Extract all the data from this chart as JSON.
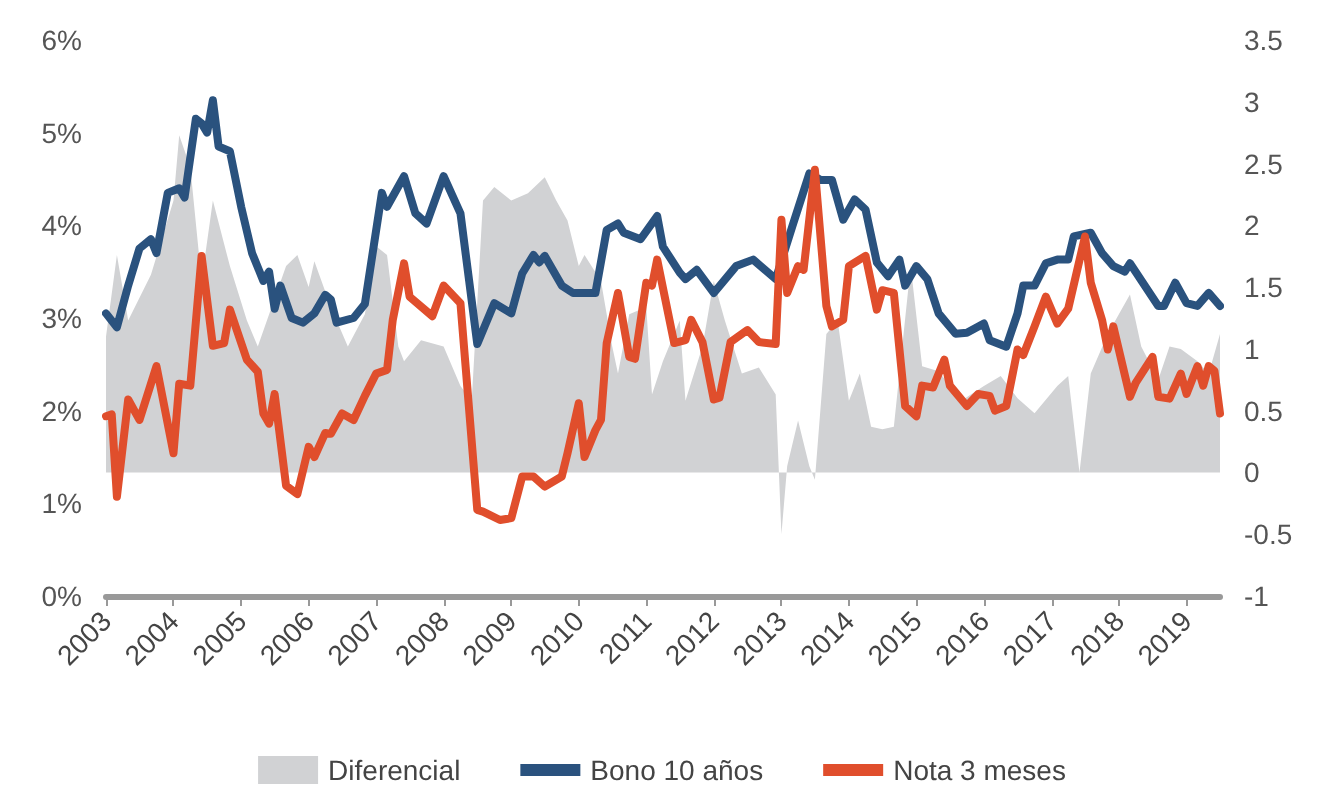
{
  "chart_data": {
    "type": "line",
    "legend": "bottom",
    "grid": false,
    "marker": "none",
    "line_style": "solid",
    "xlim": [
      "2003-01",
      "2019-07"
    ],
    "xticks": [
      "2003",
      "2004",
      "2005",
      "2006",
      "2007",
      "2008",
      "2009",
      "2010",
      "2011",
      "2012",
      "2013",
      "2014",
      "2015",
      "2016",
      "2017",
      "2018",
      "2019"
    ],
    "ylim": [
      0,
      6
    ],
    "yticks": [
      {
        "value": 0,
        "label": "0%"
      },
      {
        "value": 1,
        "label": "1%"
      },
      {
        "value": 2,
        "label": "2%"
      },
      {
        "value": 3,
        "label": "3%"
      },
      {
        "value": 4,
        "label": "4%"
      },
      {
        "value": 5,
        "label": "5%"
      },
      {
        "value": 6,
        "label": "6%"
      }
    ],
    "y2lim": [
      -1,
      3.5
    ],
    "y2ticks": [
      -1,
      -0.5,
      0,
      0.5,
      1,
      1.5,
      2,
      2.5,
      3,
      3.5
    ],
    "series": [
      {
        "name": "Diferencial",
        "type": "area",
        "axis": "y2",
        "color": "#d1d2d4",
        "x": [
          "2003-01",
          "2003-03",
          "2003-05",
          "2003-09",
          "2004-01",
          "2004-02",
          "2004-04",
          "2004-06",
          "2004-08",
          "2004-11",
          "2005-02",
          "2005-04",
          "2005-09",
          "2005-11",
          "2006-01",
          "2006-02",
          "2006-05",
          "2006-08",
          "2006-11",
          "2007-01",
          "2007-03",
          "2007-05",
          "2007-06",
          "2007-09",
          "2008-01",
          "2008-04",
          "2008-06",
          "2008-08",
          "2008-10",
          "2009-01",
          "2009-04",
          "2009-07",
          "2009-09",
          "2009-11",
          "2010-01",
          "2010-02",
          "2010-05",
          "2010-07",
          "2010-08",
          "2010-10",
          "2011-01",
          "2011-02",
          "2011-04",
          "2011-07",
          "2011-08",
          "2011-11",
          "2012-01",
          "2012-03",
          "2012-06",
          "2012-09",
          "2012-12",
          "2013-01",
          "2013-02",
          "2013-04",
          "2013-06",
          "2013-07",
          "2013-09",
          "2013-11",
          "2014-01",
          "2014-03",
          "2014-05",
          "2014-07",
          "2014-09",
          "2014-12",
          "2015-02",
          "2015-05",
          "2015-09",
          "2016-01",
          "2016-04",
          "2016-07",
          "2016-10",
          "2017-02",
          "2017-04",
          "2017-06",
          "2017-08",
          "2017-11",
          "2018-03",
          "2018-05",
          "2018-08",
          "2018-10",
          "2018-12",
          "2019-03",
          "2019-05",
          "2019-07"
        ],
        "values": [
          1.1,
          1.76,
          1.23,
          1.6,
          2.2,
          2.73,
          2.47,
          1.55,
          2.2,
          1.67,
          1.23,
          1.02,
          1.67,
          1.76,
          1.5,
          1.71,
          1.34,
          1.02,
          1.28,
          1.83,
          1.76,
          1.02,
          0.9,
          1.07,
          1.02,
          0.7,
          0.58,
          2.2,
          2.31,
          2.2,
          2.26,
          2.39,
          2.2,
          2.04,
          1.67,
          1.76,
          1.55,
          1.02,
          0.8,
          1.28,
          1.34,
          0.63,
          0.9,
          1.23,
          0.58,
          1.02,
          1.55,
          1.23,
          0.8,
          0.85,
          0.63,
          -0.5,
          0.05,
          0.42,
          0.05,
          -0.06,
          1.12,
          1.23,
          0.58,
          0.8,
          0.37,
          0.35,
          0.37,
          1.67,
          0.86,
          0.82,
          0.58,
          0.7,
          0.78,
          0.6,
          0.48,
          0.7,
          0.78,
          0,
          0.8,
          1.12,
          1.44,
          1.02,
          0.75,
          1.02,
          1.0,
          0.9,
          0.8,
          1.12
        ]
      },
      {
        "name": "Bono 10 años",
        "color": "#2a527e",
        "x": [
          "2003-01",
          "2003-03",
          "2003-05",
          "2003-07",
          "2003-09",
          "2003-10",
          "2003-12",
          "2004-02",
          "2004-03",
          "2004-05",
          "2004-06",
          "2004-07",
          "2004-08",
          "2004-09",
          "2004-11",
          "2005-01",
          "2005-03",
          "2005-05",
          "2005-06",
          "2005-07",
          "2005-08",
          "2005-10",
          "2005-12",
          "2006-02",
          "2006-04",
          "2006-05",
          "2006-06",
          "2006-09",
          "2006-11",
          "2007-02",
          "2007-03",
          "2007-06",
          "2007-08",
          "2007-10",
          "2008-01",
          "2008-04",
          "2008-07",
          "2008-10",
          "2009-01",
          "2009-03",
          "2009-05",
          "2009-06",
          "2009-07",
          "2009-10",
          "2009-12",
          "2010-04",
          "2010-06",
          "2010-08",
          "2010-09",
          "2010-12",
          "2011-03",
          "2011-04",
          "2011-07",
          "2011-08",
          "2011-10",
          "2012-01",
          "2012-05",
          "2012-08",
          "2012-12",
          "2013-03",
          "2013-06",
          "2013-08",
          "2013-10",
          "2013-12",
          "2014-02",
          "2014-04",
          "2014-06",
          "2014-08",
          "2014-10",
          "2014-11",
          "2015-01",
          "2015-03",
          "2015-05",
          "2015-08",
          "2015-10",
          "2016-01",
          "2016-02",
          "2016-05",
          "2016-07",
          "2016-08",
          "2016-10",
          "2016-12",
          "2017-02",
          "2017-04",
          "2017-05",
          "2017-08",
          "2017-10",
          "2017-12",
          "2018-02",
          "2018-03",
          "2018-08",
          "2018-09",
          "2018-11",
          "2019-01",
          "2019-03",
          "2019-05",
          "2019-07"
        ],
        "values": [
          3.05,
          2.9,
          3.35,
          3.75,
          3.85,
          3.7,
          4.35,
          4.4,
          4.3,
          5.15,
          5.1,
          5.0,
          5.35,
          4.85,
          4.8,
          4.2,
          3.7,
          3.4,
          3.5,
          3.1,
          3.35,
          3.0,
          2.95,
          3.05,
          3.25,
          3.2,
          2.95,
          3.0,
          3.15,
          4.35,
          4.2,
          4.53,
          4.13,
          4.02,
          4.53,
          4.13,
          2.72,
          3.16,
          3.05,
          3.48,
          3.68,
          3.6,
          3.67,
          3.35,
          3.27,
          3.27,
          3.95,
          4.02,
          3.92,
          3.85,
          4.1,
          3.77,
          3.49,
          3.42,
          3.52,
          3.27,
          3.56,
          3.63,
          3.42,
          3.99,
          4.56,
          4.49,
          4.49,
          4.06,
          4.28,
          4.17,
          3.6,
          3.45,
          3.63,
          3.35,
          3.56,
          3.42,
          3.05,
          2.83,
          2.84,
          2.94,
          2.76,
          2.69,
          3.05,
          3.35,
          3.35,
          3.59,
          3.63,
          3.63,
          3.88,
          3.92,
          3.7,
          3.56,
          3.5,
          3.59,
          3.13,
          3.13,
          3.38,
          3.16,
          3.13,
          3.27,
          3.13
        ]
      },
      {
        "name": "Nota 3 meses",
        "color": "#e04e2c",
        "x": [
          "2003-01",
          "2003-02",
          "2003-03",
          "2003-05",
          "2003-07",
          "2003-10",
          "2004-01",
          "2004-02",
          "2004-04",
          "2004-06",
          "2004-08",
          "2004-10",
          "2004-11",
          "2005-02",
          "2005-04",
          "2005-05",
          "2005-06",
          "2005-07",
          "2005-09",
          "2005-11",
          "2006-01",
          "2006-02",
          "2006-04",
          "2006-05",
          "2006-07",
          "2006-09",
          "2006-11",
          "2007-01",
          "2007-03",
          "2007-04",
          "2007-06",
          "2007-07",
          "2007-11",
          "2008-01",
          "2008-04",
          "2008-07",
          "2008-08",
          "2008-11",
          "2009-01",
          "2009-03",
          "2009-05",
          "2009-07",
          "2009-10",
          "2009-11",
          "2010-01",
          "2010-02",
          "2010-04",
          "2010-05",
          "2010-06",
          "2010-08",
          "2010-10",
          "2010-11",
          "2011-01",
          "2011-02",
          "2011-03",
          "2011-06",
          "2011-08",
          "2011-09",
          "2011-11",
          "2012-01",
          "2012-02",
          "2012-04",
          "2012-07",
          "2012-09",
          "2012-12",
          "2013-01",
          "2013-02",
          "2013-04",
          "2013-05",
          "2013-07",
          "2013-09",
          "2013-10",
          "2013-12",
          "2014-01",
          "2014-04",
          "2014-06",
          "2014-07",
          "2014-09",
          "2014-11",
          "2015-01",
          "2015-02",
          "2015-04",
          "2015-06",
          "2015-07",
          "2015-10",
          "2015-12",
          "2016-02",
          "2016-03",
          "2016-05",
          "2016-07",
          "2016-08",
          "2016-10",
          "2016-12",
          "2017-02",
          "2017-04",
          "2017-07",
          "2017-08",
          "2017-10",
          "2017-11",
          "2017-12",
          "2018-03",
          "2018-04",
          "2018-07",
          "2018-08",
          "2018-10",
          "2018-12",
          "2019-01",
          "2019-03",
          "2019-04",
          "2019-05",
          "2019-06",
          "2019-07"
        ],
        "values": [
          1.94,
          1.96,
          1.07,
          2.12,
          1.9,
          2.48,
          1.54,
          2.29,
          2.27,
          3.67,
          2.7,
          2.73,
          3.09,
          2.55,
          2.42,
          1.97,
          1.86,
          2.18,
          1.19,
          1.1,
          1.61,
          1.5,
          1.76,
          1.75,
          1.97,
          1.9,
          2.16,
          2.4,
          2.44,
          2.98,
          3.59,
          3.23,
          3.02,
          3.35,
          3.16,
          0.93,
          0.91,
          0.82,
          0.84,
          1.29,
          1.29,
          1.18,
          1.29,
          1.54,
          2.08,
          1.5,
          1.79,
          1.9,
          2.73,
          3.27,
          2.58,
          2.56,
          3.38,
          3.35,
          3.63,
          2.73,
          2.76,
          2.98,
          2.74,
          2.12,
          2.14,
          2.74,
          2.87,
          2.74,
          2.72,
          4.06,
          3.27,
          3.56,
          3.52,
          4.6,
          3.13,
          2.91,
          2.98,
          3.56,
          3.67,
          3.09,
          3.3,
          3.27,
          2.05,
          1.94,
          2.27,
          2.25,
          2.55,
          2.27,
          2.05,
          2.18,
          2.16,
          2.0,
          2.05,
          2.66,
          2.6,
          2.91,
          3.23,
          2.94,
          3.1,
          3.88,
          3.38,
          2.98,
          2.66,
          2.91,
          2.15,
          2.3,
          2.58,
          2.15,
          2.13,
          2.4,
          2.18,
          2.48,
          2.27,
          2.48,
          2.43,
          1.97
        ]
      }
    ]
  }
}
